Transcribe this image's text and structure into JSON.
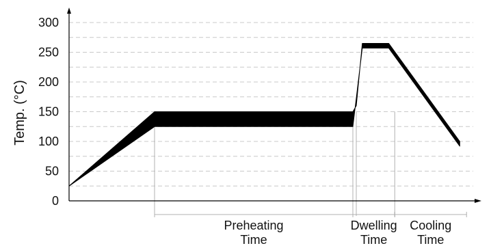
{
  "chart_data": {
    "type": "area",
    "ylabel": "Temp. (°C)",
    "xlabel": "",
    "ylim": [
      0,
      300
    ],
    "yticks": [
      0,
      50,
      100,
      150,
      200,
      250,
      300
    ],
    "grid": "y-dashed",
    "band_series": {
      "upper": [
        {
          "x": 0,
          "y": 25
        },
        {
          "x": 100,
          "y": 150
        },
        {
          "x": 332,
          "y": 150
        },
        {
          "x": 336,
          "y": 160
        },
        {
          "x": 343,
          "y": 265
        },
        {
          "x": 374,
          "y": 265
        },
        {
          "x": 457,
          "y": 100
        }
      ],
      "lower": [
        {
          "x": 0,
          "y": 25
        },
        {
          "x": 100,
          "y": 125
        },
        {
          "x": 332,
          "y": 125
        },
        {
          "x": 343,
          "y": 257
        },
        {
          "x": 374,
          "y": 257
        },
        {
          "x": 457,
          "y": 92
        }
      ]
    },
    "phases": [
      {
        "name": "Preheating",
        "name2": "Time",
        "from": 100,
        "to": 332
      },
      {
        "name": "Dwelling",
        "name2": "Time",
        "from": 332,
        "to": 381
      },
      {
        "name": "Cooling",
        "name2": "Time",
        "from": 381,
        "to": 465
      }
    ],
    "colors": {
      "band": "#000000",
      "grid": "#c8c8c8",
      "guide": "#b0b0b0",
      "axis": "#000000"
    }
  }
}
